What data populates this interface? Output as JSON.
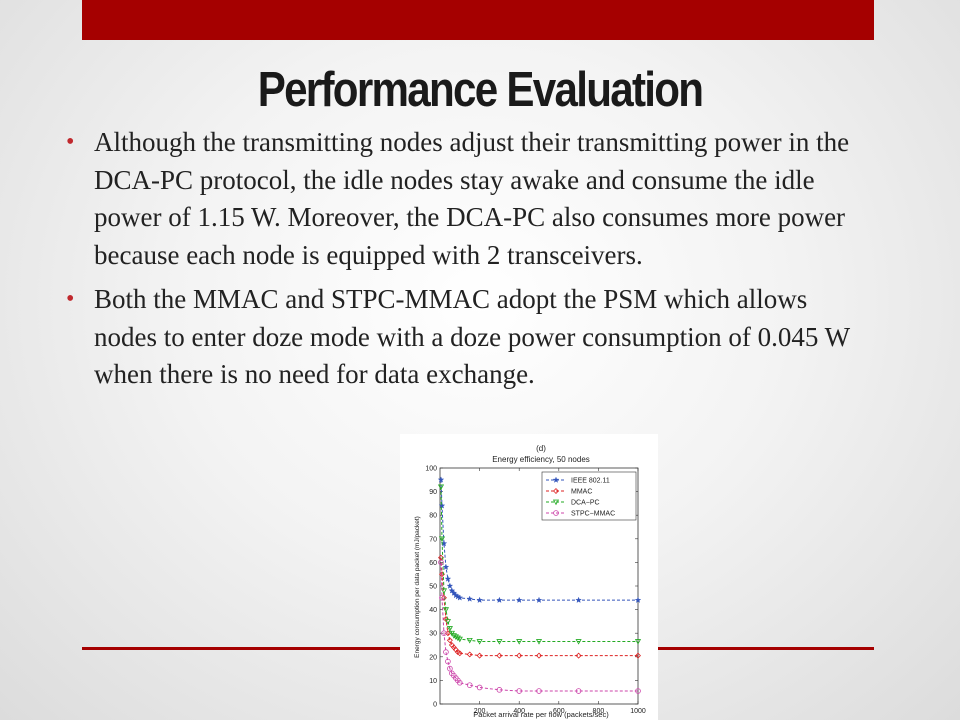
{
  "slide": {
    "title": "Performance Evaluation",
    "bullets": [
      "Although the transmitting nodes adjust their transmitting power in the DCA-PC protocol, the idle nodes stay awake and consume the idle power of 1.15 W. Moreover, the DCA-PC also consumes more power because each node is equipped with 2 transceivers.",
      "Both the MMAC and STPC-MMAC adopt the PSM which allows nodes to enter doze mode with a doze power consumption of 0.045 W when there is no need for data exchange."
    ]
  },
  "chart_data": {
    "type": "line",
    "panel_label": "(d)",
    "title": "Energy efficiency, 50 nodes",
    "xlabel": "Packet arrival rate per flow (packets/sec)",
    "ylabel": "Energy consumption per data packet (mJ/packet)",
    "xlim": [
      0,
      1000
    ],
    "ylim": [
      0,
      100
    ],
    "xticks": [
      200,
      400,
      600,
      800,
      1000
    ],
    "yticks": [
      0,
      10,
      20,
      30,
      40,
      50,
      60,
      70,
      80,
      90,
      100
    ],
    "grid": false,
    "legend_position": "top-right",
    "x": [
      5,
      10,
      20,
      30,
      40,
      50,
      60,
      70,
      80,
      90,
      100,
      150,
      200,
      300,
      400,
      500,
      700,
      1000
    ],
    "series": [
      {
        "name": "IEEE 802.11",
        "color": "#3355bb",
        "marker": "star",
        "values": [
          95,
          84,
          68,
          58,
          53,
          50,
          48,
          47,
          46,
          45.5,
          45,
          44.5,
          44,
          44,
          44,
          44,
          44,
          44
        ]
      },
      {
        "name": "MMAC",
        "color": "#dd2222",
        "marker": "diamond",
        "values": [
          62,
          55,
          45,
          36,
          30,
          27,
          25,
          24,
          23,
          22,
          21.5,
          21,
          20.5,
          20.5,
          20.5,
          20.5,
          20.5,
          20.5
        ]
      },
      {
        "name": "DCA−PC",
        "color": "#22aa22",
        "marker": "triangle-down",
        "values": [
          92,
          70,
          48,
          40,
          35,
          32,
          30,
          29,
          28.5,
          28,
          27.5,
          27,
          26.5,
          26.5,
          26.5,
          26.5,
          26.5,
          26.5
        ]
      },
      {
        "name": "STPC−MMAC",
        "color": "#cc44aa",
        "marker": "circle",
        "values": [
          60,
          45,
          30,
          22,
          18,
          15,
          13,
          12,
          11,
          10,
          9,
          8,
          7,
          6,
          5.5,
          5.5,
          5.5,
          5.5
        ]
      }
    ]
  }
}
